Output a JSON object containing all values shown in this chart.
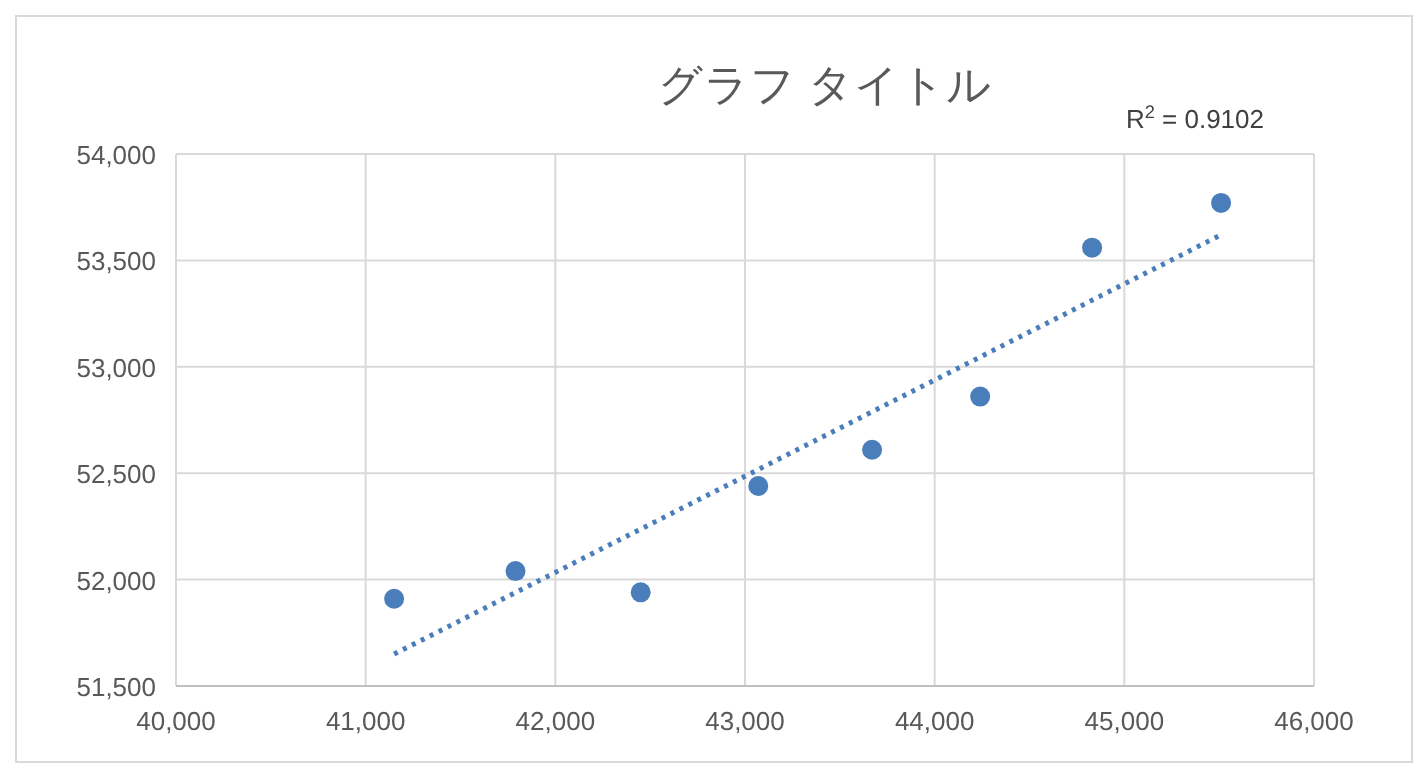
{
  "chart_data": {
    "type": "scatter",
    "title": "グラフ タイトル",
    "annotations": [
      "R$^{2}$ = 0.9102"
    ],
    "xlim": [
      40000,
      46000
    ],
    "xticks": [
      {
        "value": 40000,
        "label": "40,000"
      },
      {
        "value": 41000,
        "label": "41,000"
      },
      {
        "value": 42000,
        "label": "42,000"
      },
      {
        "value": 43000,
        "label": "43,000"
      },
      {
        "value": 44000,
        "label": "44,000"
      },
      {
        "value": 45000,
        "label": "45,000"
      },
      {
        "value": 46000,
        "label": "46,000"
      }
    ],
    "ylim": [
      51500,
      54000
    ],
    "yticks": [
      {
        "value": 51500,
        "label": "51,500"
      },
      {
        "value": 52000,
        "label": "52,000"
      },
      {
        "value": 52500,
        "label": "52,500"
      },
      {
        "value": 53000,
        "label": "53,000"
      },
      {
        "value": 53500,
        "label": "53,500"
      },
      {
        "value": 54000,
        "label": "54,000"
      }
    ],
    "grid": true,
    "series": [
      {
        "color": "#4a7ebb",
        "marker": "circle",
        "x": [
          41150,
          41790,
          42450,
          43070,
          43670,
          44240,
          44830,
          45510
        ],
        "values": [
          51910,
          52040,
          51940,
          52440,
          52610,
          52860,
          53560,
          53770
        ]
      },
      {
        "type": "line",
        "color": "#4a7ebb",
        "line_style": "dotted",
        "x": [
          41150,
          45510
        ],
        "values": [
          51650,
          53620
        ]
      }
    ]
  }
}
